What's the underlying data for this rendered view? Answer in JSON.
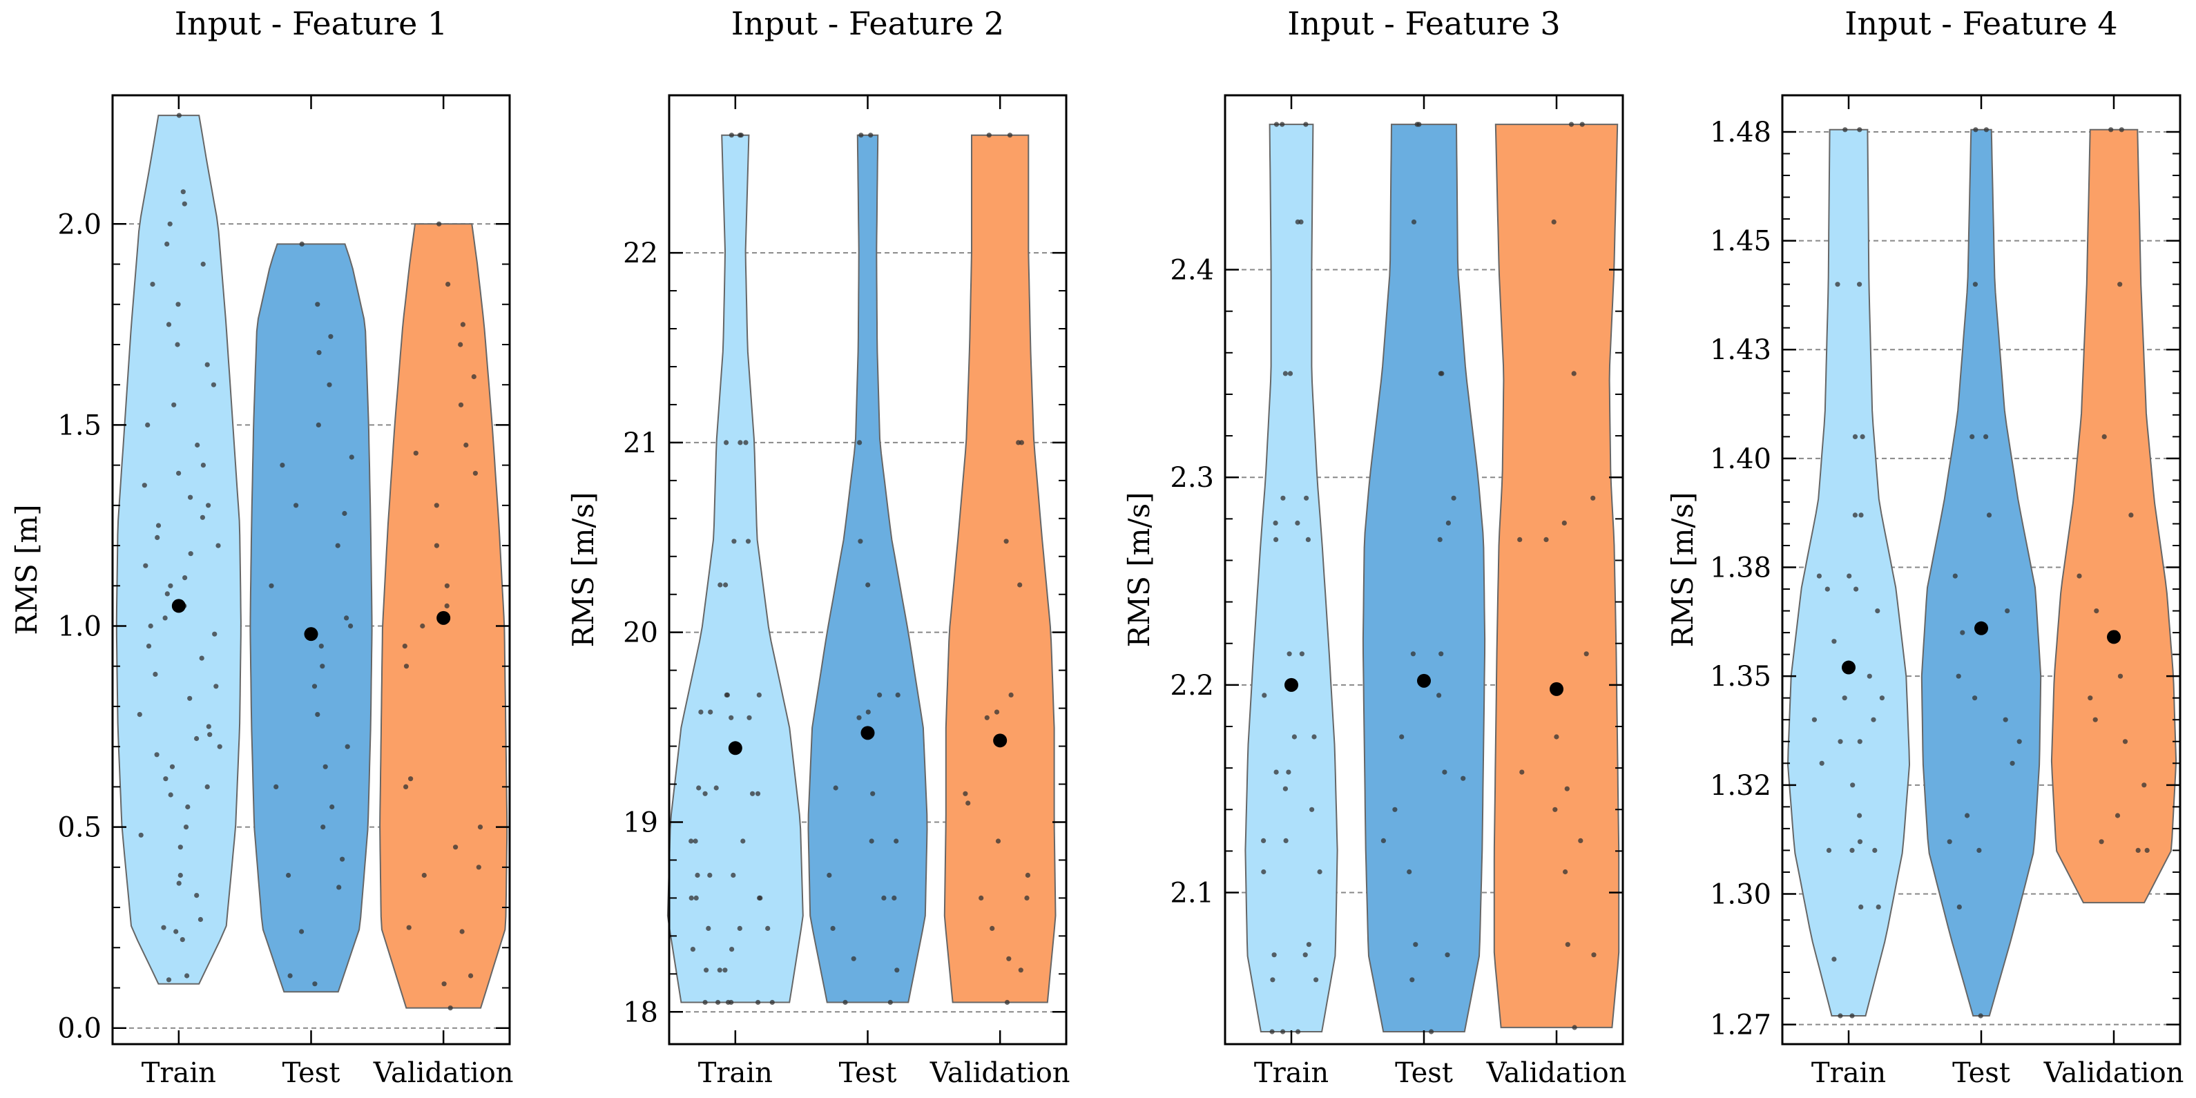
{
  "colors": {
    "Train": "#aee0fb",
    "Test": "#6aaee0",
    "Validation": "#fba066",
    "outline": "#666666",
    "grid": "#888888",
    "mean": "#000000",
    "point": "#333333"
  },
  "chart_data": [
    {
      "type": "violin",
      "title": "Input - Feature 1",
      "ylabel": "RMS [m]",
      "ylim": [
        -0.04,
        2.32
      ],
      "yticks": [
        0.0,
        0.5,
        1.0,
        1.5,
        2.0
      ],
      "yticklabels": [
        "0.0",
        "0.5",
        "1.0",
        "1.5",
        "2.0"
      ],
      "categories": [
        "Train",
        "Test",
        "Validation"
      ],
      "series": [
        {
          "name": "Train",
          "min": 0.11,
          "max": 2.27,
          "mean": 1.05,
          "profile": [
            [
              0.11,
              0.3
            ],
            [
              0.25,
              0.7
            ],
            [
              0.5,
              0.84
            ],
            [
              0.75,
              0.9
            ],
            [
              1.0,
              0.92
            ],
            [
              1.25,
              0.9
            ],
            [
              1.5,
              0.8
            ],
            [
              1.75,
              0.7
            ],
            [
              2.0,
              0.58
            ],
            [
              2.15,
              0.42
            ],
            [
              2.27,
              0.3
            ]
          ],
          "points": [
            0.12,
            0.13,
            0.22,
            0.24,
            0.25,
            0.27,
            0.33,
            0.36,
            0.38,
            0.45,
            0.48,
            0.5,
            0.55,
            0.58,
            0.6,
            0.62,
            0.65,
            0.68,
            0.7,
            0.72,
            0.73,
            0.75,
            0.78,
            0.82,
            0.85,
            0.88,
            0.92,
            0.95,
            0.98,
            1.0,
            1.02,
            1.05,
            1.08,
            1.1,
            1.12,
            1.15,
            1.18,
            1.2,
            1.22,
            1.25,
            1.27,
            1.3,
            1.32,
            1.35,
            1.38,
            1.4,
            1.45,
            1.5,
            1.55,
            1.6,
            1.65,
            1.7,
            1.75,
            1.8,
            1.85,
            1.9,
            1.95,
            2.0,
            2.05,
            2.08,
            2.27
          ]
        },
        {
          "name": "Test",
          "min": 0.09,
          "max": 1.95,
          "mean": 0.98,
          "profile": [
            [
              0.09,
              0.4
            ],
            [
              0.25,
              0.72
            ],
            [
              0.5,
              0.84
            ],
            [
              0.75,
              0.88
            ],
            [
              1.0,
              0.9
            ],
            [
              1.25,
              0.88
            ],
            [
              1.5,
              0.85
            ],
            [
              1.75,
              0.8
            ],
            [
              1.9,
              0.6
            ],
            [
              1.95,
              0.5
            ]
          ],
          "points": [
            0.11,
            0.13,
            0.24,
            0.35,
            0.38,
            0.42,
            0.5,
            0.55,
            0.6,
            0.65,
            0.7,
            0.78,
            0.85,
            0.9,
            0.95,
            1.0,
            1.02,
            1.1,
            1.2,
            1.28,
            1.3,
            1.4,
            1.42,
            1.5,
            1.6,
            1.68,
            1.72,
            1.8,
            1.95
          ]
        },
        {
          "name": "Validation",
          "min": 0.05,
          "max": 2.0,
          "mean": 1.02,
          "profile": [
            [
              0.05,
              0.55
            ],
            [
              0.25,
              0.92
            ],
            [
              0.5,
              0.94
            ],
            [
              0.75,
              0.92
            ],
            [
              1.0,
              0.9
            ],
            [
              1.25,
              0.82
            ],
            [
              1.5,
              0.72
            ],
            [
              1.75,
              0.6
            ],
            [
              1.9,
              0.5
            ],
            [
              2.0,
              0.42
            ]
          ],
          "points": [
            0.05,
            0.11,
            0.13,
            0.24,
            0.25,
            0.38,
            0.4,
            0.45,
            0.5,
            0.6,
            0.62,
            0.9,
            0.95,
            1.0,
            1.05,
            1.1,
            1.2,
            1.3,
            1.38,
            1.43,
            1.45,
            1.55,
            1.62,
            1.7,
            1.75,
            1.85,
            2.0
          ]
        }
      ]
    },
    {
      "type": "violin",
      "title": "Input - Feature 2",
      "ylabel": "RMS [m/s]",
      "ylim": [
        17.83,
        22.83
      ],
      "yticks": [
        18,
        19,
        20,
        21,
        22
      ],
      "yticklabels": [
        "18",
        "19",
        "20",
        "21",
        "22"
      ],
      "categories": [
        "Train",
        "Test",
        "Validation"
      ],
      "series": [
        {
          "name": "Train",
          "min": 18.05,
          "max": 22.62,
          "mean": 19.39,
          "profile": [
            [
              18.05,
              0.8
            ],
            [
              18.5,
              1.0
            ],
            [
              19.0,
              0.96
            ],
            [
              19.5,
              0.8
            ],
            [
              20.0,
              0.5
            ],
            [
              20.5,
              0.32
            ],
            [
              21.0,
              0.28
            ],
            [
              21.5,
              0.18
            ],
            [
              22.0,
              0.15
            ],
            [
              22.62,
              0.2
            ]
          ],
          "points": [
            18.05,
            18.05,
            18.05,
            18.05,
            18.05,
            18.05,
            18.22,
            18.22,
            18.22,
            18.33,
            18.33,
            18.44,
            18.44,
            18.44,
            18.6,
            18.6,
            18.6,
            18.6,
            18.72,
            18.72,
            18.72,
            18.9,
            18.9,
            18.9,
            19.15,
            19.15,
            19.15,
            19.18,
            19.18,
            19.55,
            19.55,
            19.58,
            19.58,
            19.67,
            19.67,
            19.67,
            20.25,
            20.25,
            20.48,
            20.48,
            21.0,
            21.0,
            21.0,
            22.62,
            22.62,
            22.62
          ]
        },
        {
          "name": "Test",
          "min": 18.05,
          "max": 22.62,
          "mean": 19.47,
          "profile": [
            [
              18.05,
              0.6
            ],
            [
              18.5,
              0.85
            ],
            [
              19.0,
              0.88
            ],
            [
              19.5,
              0.82
            ],
            [
              20.0,
              0.6
            ],
            [
              20.5,
              0.35
            ],
            [
              21.0,
              0.18
            ],
            [
              21.5,
              0.14
            ],
            [
              22.0,
              0.13
            ],
            [
              22.62,
              0.15
            ]
          ],
          "points": [
            18.05,
            18.05,
            18.22,
            18.28,
            18.44,
            18.6,
            18.6,
            18.72,
            18.9,
            18.9,
            19.15,
            19.18,
            19.55,
            19.58,
            19.67,
            19.67,
            20.25,
            20.48,
            21.0,
            22.62,
            22.62
          ]
        },
        {
          "name": "Validation",
          "min": 18.05,
          "max": 22.62,
          "mean": 19.43,
          "profile": [
            [
              18.05,
              0.7
            ],
            [
              18.5,
              0.82
            ],
            [
              19.0,
              0.8
            ],
            [
              19.5,
              0.8
            ],
            [
              20.0,
              0.75
            ],
            [
              20.5,
              0.62
            ],
            [
              21.0,
              0.5
            ],
            [
              21.5,
              0.45
            ],
            [
              22.0,
              0.42
            ],
            [
              22.62,
              0.42
            ]
          ],
          "points": [
            18.05,
            18.22,
            18.28,
            18.44,
            18.6,
            18.6,
            18.72,
            18.9,
            19.1,
            19.15,
            19.55,
            19.58,
            19.67,
            20.25,
            20.48,
            21.0,
            21.0,
            22.62,
            22.62
          ]
        }
      ]
    },
    {
      "type": "violin",
      "title": "Input - Feature 3",
      "ylabel": "RMS [m/s]",
      "ylim": [
        2.027,
        2.484
      ],
      "yticks": [
        2.1,
        2.2,
        2.3,
        2.4
      ],
      "yticklabels": [
        "2.1",
        "2.2",
        "2.3",
        "2.4"
      ],
      "categories": [
        "Train",
        "Test",
        "Validation"
      ],
      "series": [
        {
          "name": "Train",
          "min": 2.033,
          "max": 2.47,
          "mean": 2.2,
          "profile": [
            [
              2.033,
              0.45
            ],
            [
              2.07,
              0.65
            ],
            [
              2.12,
              0.68
            ],
            [
              2.17,
              0.64
            ],
            [
              2.22,
              0.55
            ],
            [
              2.27,
              0.45
            ],
            [
              2.3,
              0.38
            ],
            [
              2.35,
              0.3
            ],
            [
              2.4,
              0.3
            ],
            [
              2.47,
              0.32
            ]
          ],
          "points": [
            2.033,
            2.033,
            2.033,
            2.058,
            2.058,
            2.07,
            2.07,
            2.075,
            2.11,
            2.11,
            2.125,
            2.125,
            2.14,
            2.15,
            2.158,
            2.158,
            2.175,
            2.175,
            2.195,
            2.215,
            2.215,
            2.27,
            2.27,
            2.278,
            2.278,
            2.29,
            2.29,
            2.35,
            2.35,
            2.423,
            2.423,
            2.47,
            2.47,
            2.47
          ]
        },
        {
          "name": "Test",
          "min": 2.033,
          "max": 2.47,
          "mean": 2.202,
          "profile": [
            [
              2.033,
              0.6
            ],
            [
              2.07,
              0.82
            ],
            [
              2.12,
              0.86
            ],
            [
              2.17,
              0.88
            ],
            [
              2.22,
              0.9
            ],
            [
              2.27,
              0.88
            ],
            [
              2.3,
              0.8
            ],
            [
              2.35,
              0.62
            ],
            [
              2.4,
              0.5
            ],
            [
              2.47,
              0.48
            ]
          ],
          "points": [
            2.033,
            2.058,
            2.07,
            2.075,
            2.11,
            2.125,
            2.14,
            2.155,
            2.158,
            2.175,
            2.195,
            2.215,
            2.215,
            2.27,
            2.278,
            2.29,
            2.35,
            2.35,
            2.423,
            2.47,
            2.47
          ]
        },
        {
          "name": "Validation",
          "min": 2.035,
          "max": 2.47,
          "mean": 2.198,
          "profile": [
            [
              2.035,
              0.82
            ],
            [
              2.07,
              0.92
            ],
            [
              2.12,
              0.92
            ],
            [
              2.17,
              0.9
            ],
            [
              2.22,
              0.88
            ],
            [
              2.27,
              0.85
            ],
            [
              2.3,
              0.8
            ],
            [
              2.35,
              0.78
            ],
            [
              2.4,
              0.85
            ],
            [
              2.47,
              0.9
            ]
          ],
          "points": [
            2.035,
            2.07,
            2.075,
            2.11,
            2.125,
            2.14,
            2.15,
            2.158,
            2.175,
            2.215,
            2.27,
            2.27,
            2.278,
            2.29,
            2.35,
            2.423,
            2.47,
            2.47
          ]
        }
      ]
    },
    {
      "type": "violin",
      "title": "Input - Feature 4",
      "ylabel": "RMS [m/s]",
      "ylim": [
        1.2655,
        1.4834
      ],
      "yticks": [
        1.27,
        1.3,
        1.325,
        1.35,
        1.375,
        1.4,
        1.425,
        1.45,
        1.475
      ],
      "yticklabels": [
        "1.27",
        "1.30",
        "1.32",
        "1.35",
        "1.38",
        "1.40",
        "1.43",
        "1.45",
        "1.48"
      ],
      "categories": [
        "Train",
        "Test",
        "Validation"
      ],
      "series": [
        {
          "name": "Train",
          "min": 1.272,
          "max": 1.4755,
          "mean": 1.352,
          "profile": [
            [
              1.272,
              0.25
            ],
            [
              1.29,
              0.55
            ],
            [
              1.31,
              0.8
            ],
            [
              1.33,
              0.9
            ],
            [
              1.35,
              0.85
            ],
            [
              1.37,
              0.7
            ],
            [
              1.39,
              0.45
            ],
            [
              1.41,
              0.35
            ],
            [
              1.44,
              0.3
            ],
            [
              1.4755,
              0.28
            ]
          ],
          "points": [
            1.272,
            1.272,
            1.285,
            1.297,
            1.297,
            1.31,
            1.31,
            1.31,
            1.312,
            1.318,
            1.325,
            1.33,
            1.335,
            1.335,
            1.34,
            1.34,
            1.345,
            1.345,
            1.35,
            1.358,
            1.365,
            1.37,
            1.37,
            1.373,
            1.373,
            1.387,
            1.387,
            1.405,
            1.405,
            1.44,
            1.44,
            1.4755,
            1.4755
          ]
        },
        {
          "name": "Test",
          "min": 1.272,
          "max": 1.4755,
          "mean": 1.361,
          "profile": [
            [
              1.272,
              0.12
            ],
            [
              1.29,
              0.45
            ],
            [
              1.31,
              0.78
            ],
            [
              1.33,
              0.86
            ],
            [
              1.35,
              0.88
            ],
            [
              1.37,
              0.8
            ],
            [
              1.39,
              0.55
            ],
            [
              1.41,
              0.35
            ],
            [
              1.44,
              0.2
            ],
            [
              1.4755,
              0.15
            ]
          ],
          "points": [
            1.272,
            1.297,
            1.31,
            1.312,
            1.318,
            1.33,
            1.335,
            1.34,
            1.345,
            1.35,
            1.36,
            1.365,
            1.373,
            1.387,
            1.405,
            1.405,
            1.44,
            1.4755,
            1.4755
          ]
        },
        {
          "name": "Validation",
          "min": 1.298,
          "max": 1.4755,
          "mean": 1.359,
          "profile": [
            [
              1.298,
              0.45
            ],
            [
              1.31,
              0.85
            ],
            [
              1.33,
              0.92
            ],
            [
              1.35,
              0.88
            ],
            [
              1.37,
              0.78
            ],
            [
              1.39,
              0.6
            ],
            [
              1.41,
              0.48
            ],
            [
              1.44,
              0.4
            ],
            [
              1.4755,
              0.35
            ]
          ],
          "points": [
            1.31,
            1.31,
            1.312,
            1.318,
            1.325,
            1.335,
            1.34,
            1.345,
            1.35,
            1.36,
            1.365,
            1.373,
            1.387,
            1.405,
            1.44,
            1.4755,
            1.4755
          ]
        }
      ]
    }
  ]
}
